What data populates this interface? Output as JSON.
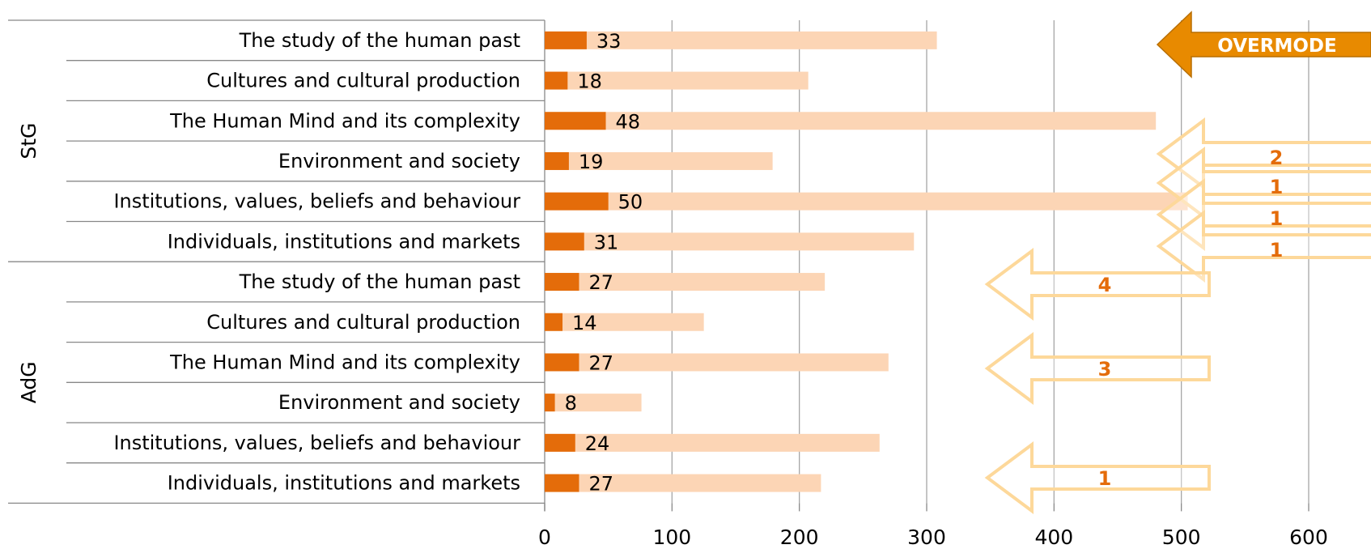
{
  "chart_data": {
    "type": "bar",
    "orientation": "horizontal",
    "groups": [
      {
        "name": "StG",
        "categories": [
          {
            "label": "The study of the human past",
            "selected": 33,
            "total": 308
          },
          {
            "label": "Cultures and cultural production",
            "selected": 18,
            "total": 207
          },
          {
            "label": "The Human Mind and its complexity",
            "selected": 48,
            "total": 480
          },
          {
            "label": "Environment and society",
            "selected": 19,
            "total": 179
          },
          {
            "label": "Institutions, values, beliefs and behaviour",
            "selected": 50,
            "total": 505
          },
          {
            "label": "Individuals, institutions and markets",
            "selected": 31,
            "total": 290
          }
        ]
      },
      {
        "name": "AdG",
        "categories": [
          {
            "label": "The study of the human past",
            "selected": 27,
            "total": 220
          },
          {
            "label": "Cultures and cultural production",
            "selected": 14,
            "total": 125
          },
          {
            "label": "The Human Mind and its complexity",
            "selected": 27,
            "total": 270
          },
          {
            "label": "Environment and society",
            "selected": 8,
            "total": 76
          },
          {
            "label": "Institutions, values, beliefs and behaviour",
            "selected": 24,
            "total": 263
          },
          {
            "label": "Individuals, institutions and markets",
            "selected": 27,
            "total": 217
          }
        ]
      }
    ],
    "xlim": [
      0,
      600
    ],
    "xticks": [
      0,
      100,
      200,
      300,
      400,
      500,
      600
    ],
    "grid": true,
    "colors": {
      "selected": "#E46C0A",
      "total": "#FCD5B5",
      "grid": "#A6A6A6",
      "arrow_outline": "#FDD89A",
      "arrow_text": "#E46C0A",
      "overmode_fill": "#E88A00"
    },
    "overmode_label": "OVERMODE",
    "arrows": [
      {
        "label": "2"
      },
      {
        "label": "1"
      },
      {
        "label": "1"
      },
      {
        "label": "1"
      },
      {
        "label": "4"
      },
      {
        "label": "3"
      },
      {
        "label": "1"
      }
    ]
  }
}
